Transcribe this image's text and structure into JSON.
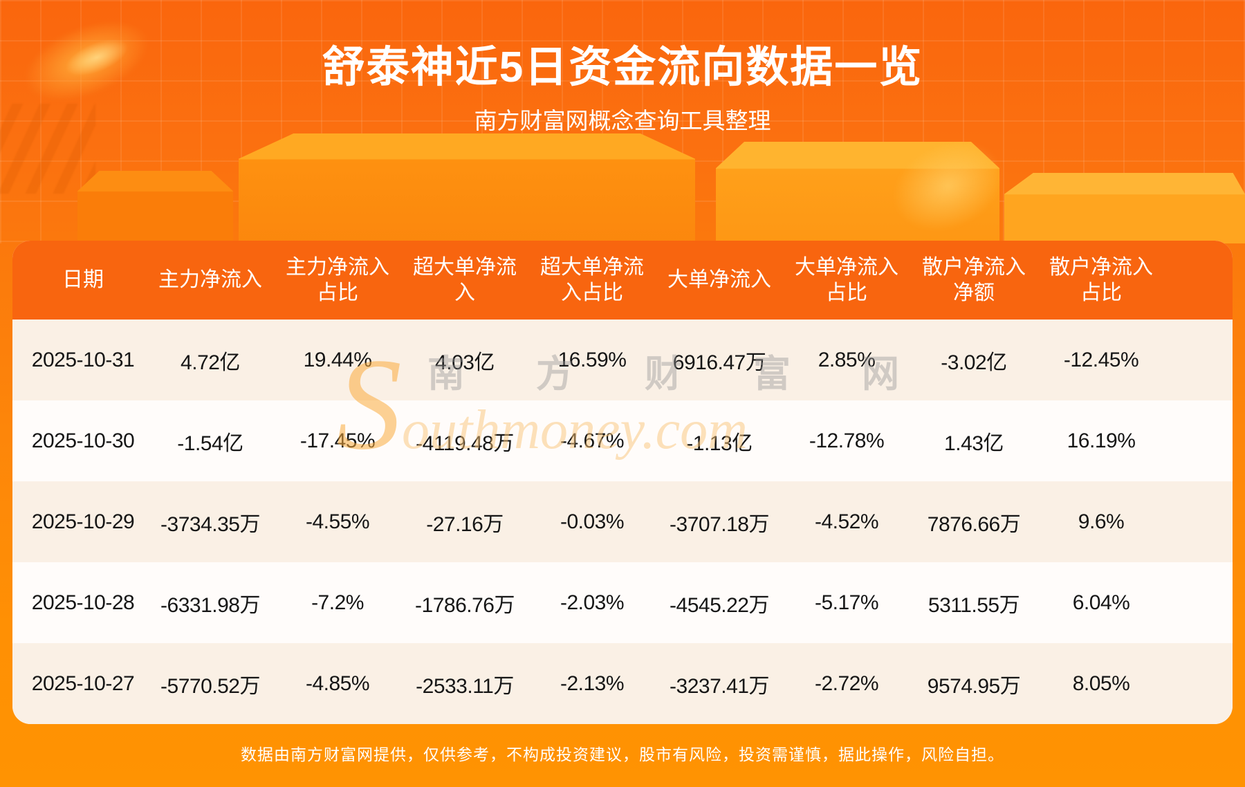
{
  "header": {
    "title": "舒泰神近5日资金流向数据一览",
    "subtitle": "南方财富网概念查询工具整理"
  },
  "table": {
    "columns": [
      "日期",
      "主力净流入",
      "主力净流入\n占比",
      "超大单净流\n入",
      "超大单净流\n入占比",
      "大单净流入",
      "大单净流入\n占比",
      "散户净流入\n净额",
      "散户净流入\n占比"
    ],
    "rows": [
      [
        "2025-10-31",
        "4.72亿",
        "19.44%",
        "4.03亿",
        "16.59%",
        "6916.47万",
        "2.85%",
        "-3.02亿",
        "-12.45%"
      ],
      [
        "2025-10-30",
        "-1.54亿",
        "-17.45%",
        "-4119.48万",
        "-4.67%",
        "-1.13亿",
        "-12.78%",
        "1.43亿",
        "16.19%"
      ],
      [
        "2025-10-29",
        "-3734.35万",
        "-4.55%",
        "-27.16万",
        "-0.03%",
        "-3707.18万",
        "-4.52%",
        "7876.66万",
        "9.6%"
      ],
      [
        "2025-10-28",
        "-6331.98万",
        "-7.2%",
        "-1786.76万",
        "-2.03%",
        "-4545.22万",
        "-5.17%",
        "5311.55万",
        "6.04%"
      ],
      [
        "2025-10-27",
        "-5770.52万",
        "-4.85%",
        "-2533.11万",
        "-2.13%",
        "-3237.41万",
        "-2.72%",
        "9574.95万",
        "8.05%"
      ]
    ]
  },
  "chart_data": {
    "type": "table",
    "title": "舒泰神近5日资金流向数据一览",
    "subtitle": "南方财富网概念查询工具整理",
    "columns": [
      "日期",
      "主力净流入",
      "主力净流入占比",
      "超大单净流入",
      "超大单净流入占比",
      "大单净流入",
      "大单净流入占比",
      "散户净流入净额",
      "散户净流入占比"
    ],
    "rows": [
      [
        "2025-10-31",
        "4.72亿",
        "19.44%",
        "4.03亿",
        "16.59%",
        "6916.47万",
        "2.85%",
        "-3.02亿",
        "-12.45%"
      ],
      [
        "2025-10-30",
        "-1.54亿",
        "-17.45%",
        "-4119.48万",
        "-4.67%",
        "-1.13亿",
        "-12.78%",
        "1.43亿",
        "16.19%"
      ],
      [
        "2025-10-29",
        "-3734.35万",
        "-4.55%",
        "-27.16万",
        "-0.03%",
        "-3707.18万",
        "-4.52%",
        "7876.66万",
        "9.6%"
      ],
      [
        "2025-10-28",
        "-6331.98万",
        "-7.2%",
        "-1786.76万",
        "-2.03%",
        "-4545.22万",
        "-5.17%",
        "5311.55万",
        "6.04%"
      ],
      [
        "2025-10-27",
        "-5770.52万",
        "-4.85%",
        "-2533.11万",
        "-2.13%",
        "-3237.41万",
        "-2.72%",
        "9574.95万",
        "8.05%"
      ]
    ]
  },
  "watermark": {
    "cn": "南 方 财 富 网",
    "en": "Southmoney.com"
  },
  "footer": {
    "disclaimer": "数据由南方财富网提供，仅供参考，不构成投资建议，股市有风险，投资需谨慎，据此操作，风险自担。"
  },
  "colors": {
    "header_orange": "#f8650f",
    "row_cream": "#faf0e5",
    "row_white": "#fffcfa",
    "page_top": "#fa660d",
    "page_bottom": "#ff9302"
  }
}
